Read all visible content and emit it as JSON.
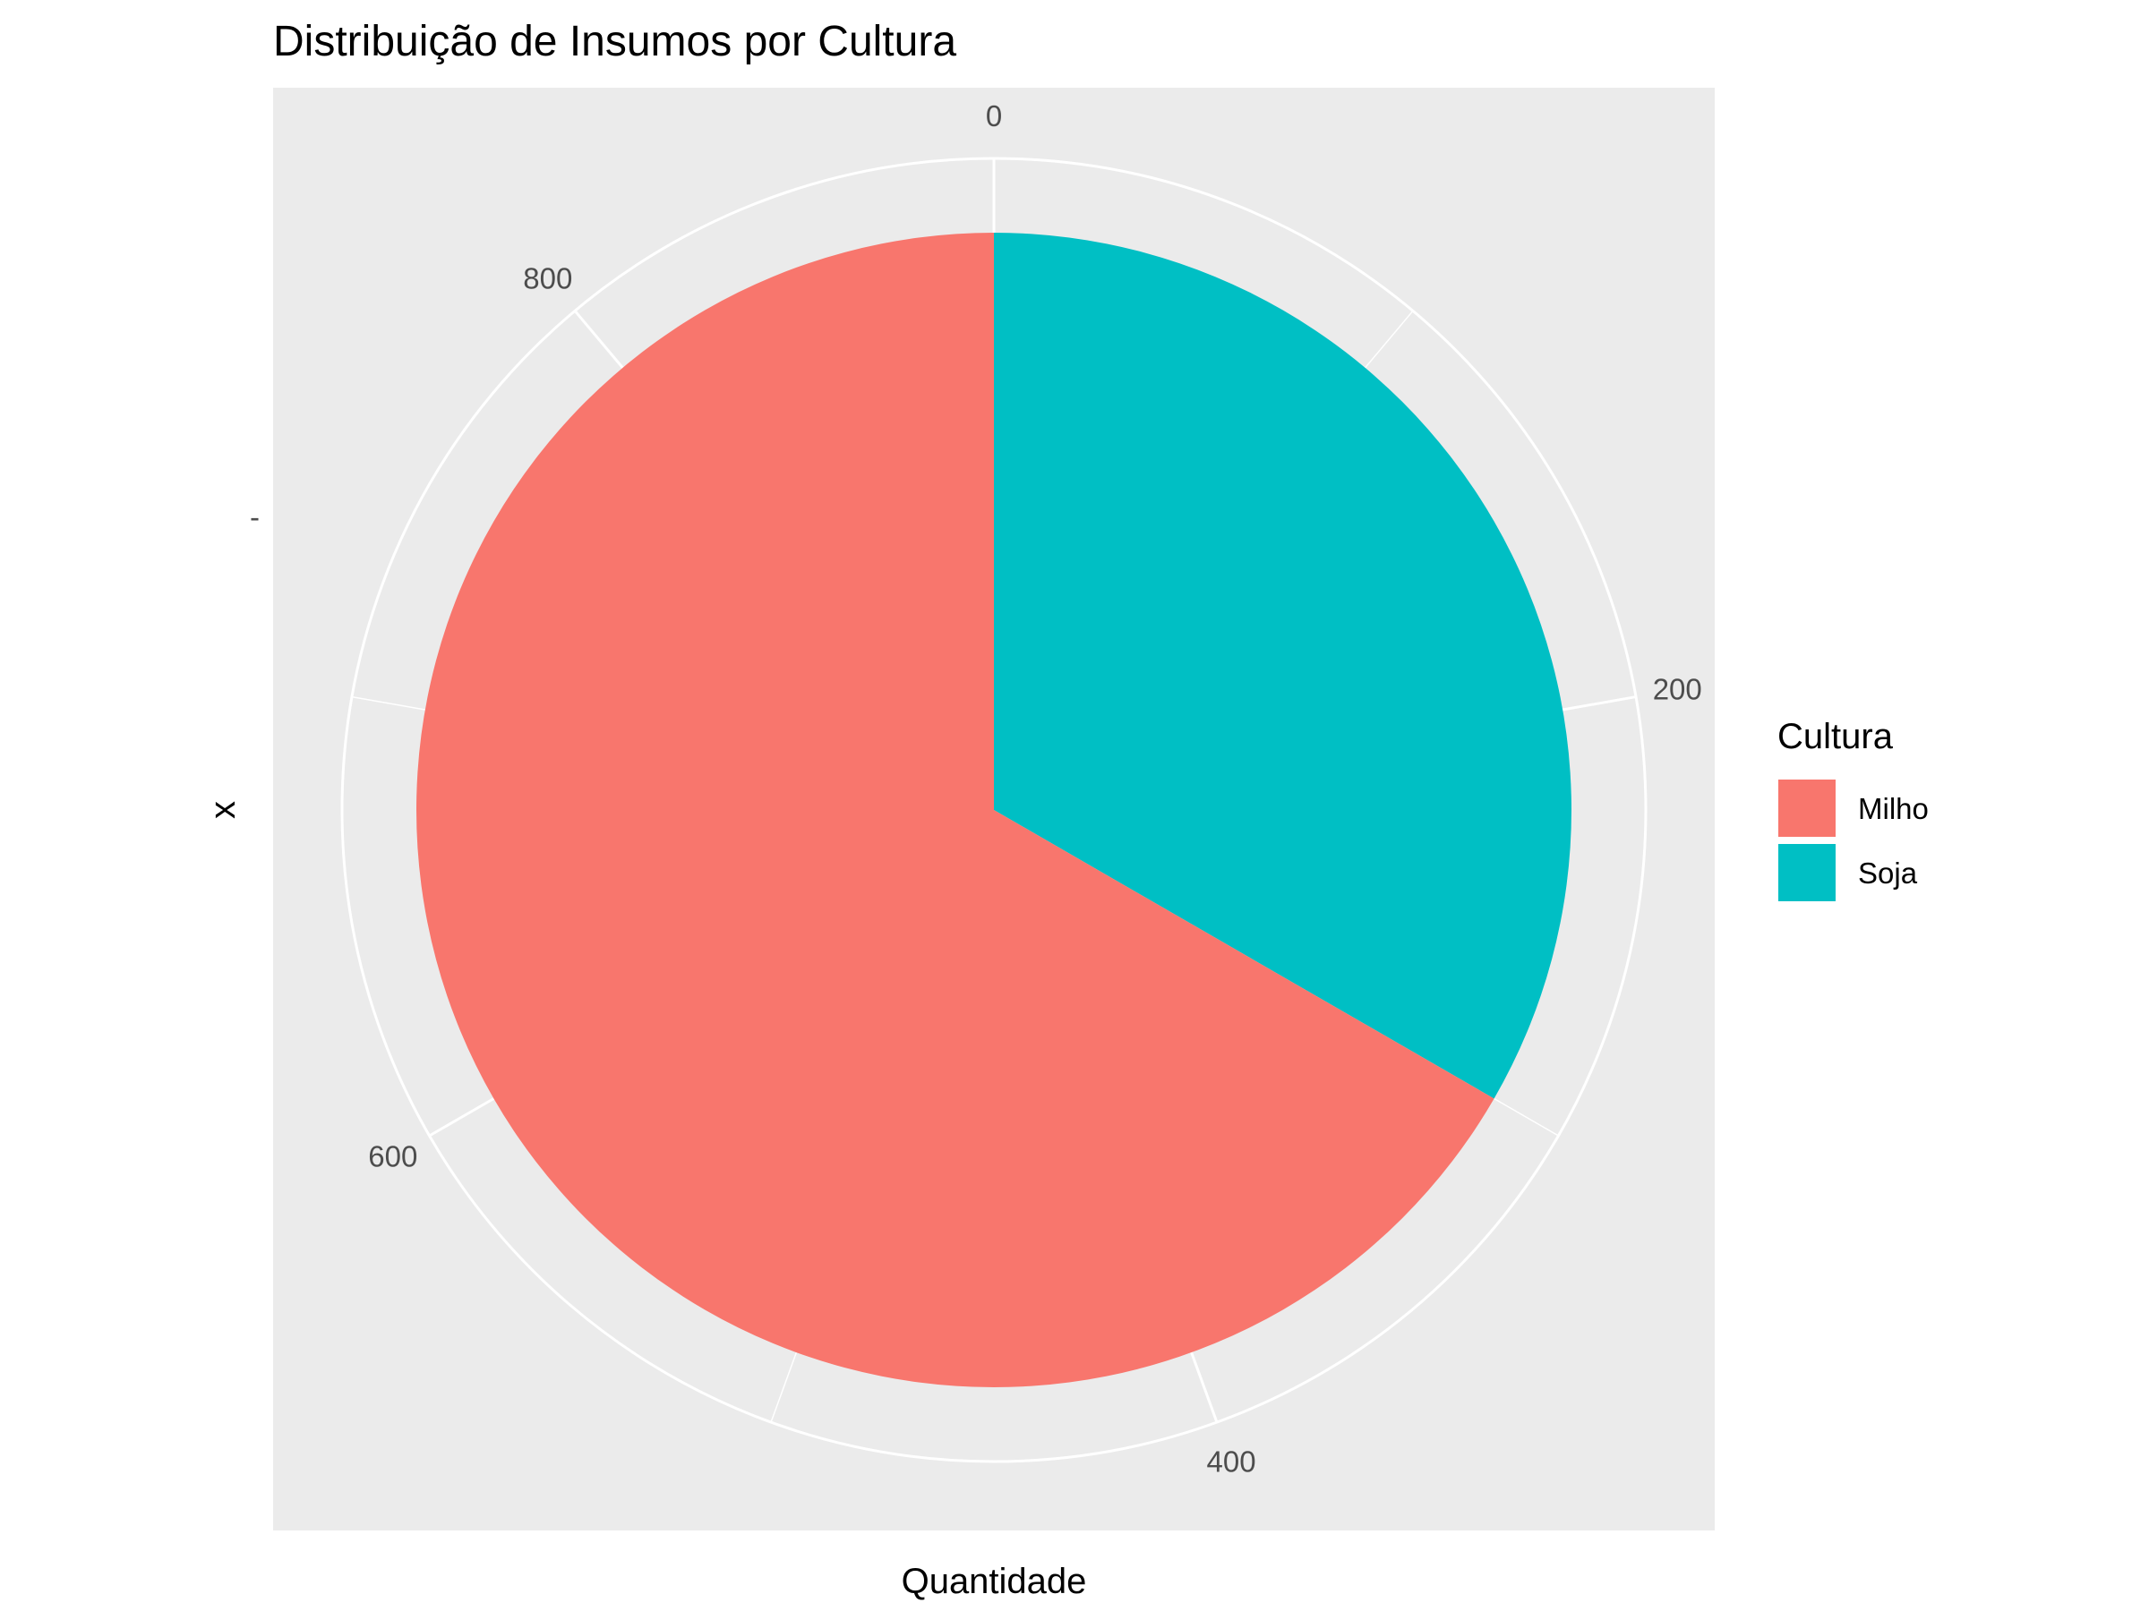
{
  "chart_data": {
    "type": "pie",
    "title": "Distribuição de Insumos por Cultura",
    "xlabel": "Quantidade",
    "ylabel": "x",
    "y_tick_label": "-",
    "theta_ticks": [
      0,
      200,
      400,
      600,
      800
    ],
    "theta_range": [
      0,
      900
    ],
    "categories": [
      "Milho",
      "Soja"
    ],
    "values": [
      600,
      300
    ],
    "colors": [
      "#F8766D",
      "#00BFC4"
    ],
    "legend": {
      "title": "Cultura",
      "position": "right"
    },
    "panel_background": "#EBEBEB",
    "grid_color": "#FFFFFF",
    "grid": true
  }
}
